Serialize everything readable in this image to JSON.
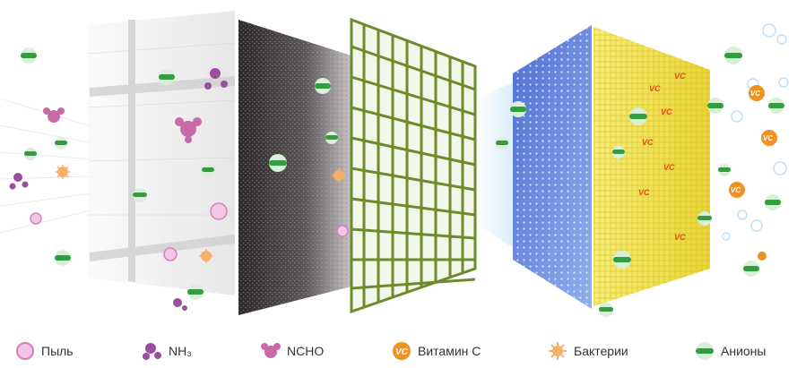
{
  "colors": {
    "anion_green": "#2f9e3c",
    "anion_ring": "#d8efd8",
    "dust_pink": "#e79bd2",
    "nh3_purple": "#9a4ea0",
    "ncho_pink": "#c86aa8",
    "vitamin_orange": "#f19122",
    "bacteria_orange": "#f5b06a",
    "water_blue": "#bfe0f5",
    "hepa_blue": "#5d80d8",
    "vc_yellow": "#f1e34a",
    "mesh_green": "#6c8b2c",
    "carbon_dark": "#2e2b2d"
  },
  "filters": [
    {
      "name": "pre-filter",
      "color": "#eeeeee"
    },
    {
      "name": "carbon-filter",
      "color": "#3a3638"
    },
    {
      "name": "mesh-filter",
      "color": "#6c8b2c"
    },
    {
      "name": "hepa-filter",
      "color": "#5d80d8"
    },
    {
      "name": "vitamin-c-filter",
      "color": "#f1e34a"
    }
  ],
  "legend": [
    {
      "icon": "dust-icon",
      "label": "Пыль"
    },
    {
      "icon": "nh3-icon",
      "label": "NH₃"
    },
    {
      "icon": "ncho-icon",
      "label": "NCHO"
    },
    {
      "icon": "vitamin-c-icon",
      "label": "Витамин С"
    },
    {
      "icon": "bacteria-icon",
      "label": "Бактерии"
    },
    {
      "icon": "anion-icon",
      "label": "Анионы"
    }
  ],
  "vc_mark": "VC"
}
